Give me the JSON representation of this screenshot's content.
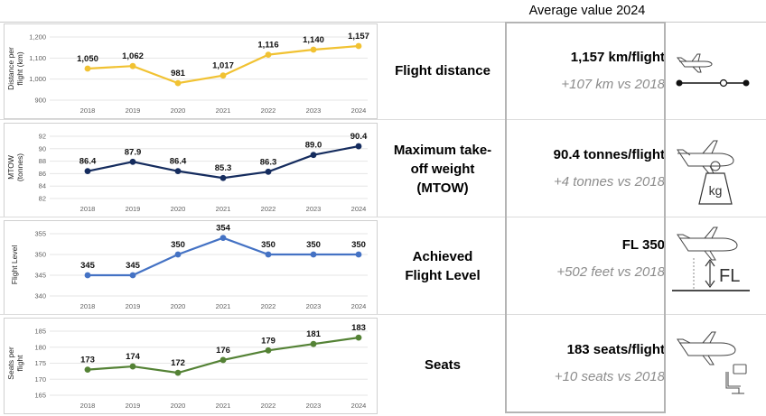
{
  "header": {
    "title": "Average value 2024"
  },
  "rows": [
    {
      "label": "Flight distance",
      "value": "1,157 km/flight",
      "delta": "+107 km vs 2018",
      "icon": "plane-distance-icon",
      "color": "#f1c232",
      "chart_data": {
        "type": "line",
        "ylabel": "Distance per flight (km)",
        "x": [
          "2018",
          "2019",
          "2020",
          "2021",
          "2022",
          "2023",
          "2024"
        ],
        "values": [
          1050,
          1062,
          981,
          1017,
          1116,
          1140,
          1157
        ],
        "labels": [
          "1,050",
          "1,062",
          "981",
          "1,017",
          "1,116",
          "1,140",
          "1,157"
        ],
        "yticks": [
          "900",
          "1,000",
          "1,100",
          "1,200"
        ],
        "ytick_values": [
          900,
          1000,
          1100,
          1200
        ],
        "ylim": [
          900,
          1200
        ],
        "grid": true
      }
    },
    {
      "label": "Maximum take-off weight (MTOW)",
      "value": "90.4 tonnes/flight",
      "delta": "+4 tonnes vs 2018",
      "icon": "plane-weight-kg-icon",
      "color": "#152c5e",
      "chart_data": {
        "type": "line",
        "ylabel": "MTOW (tonnes)",
        "x": [
          "2018",
          "2019",
          "2020",
          "2021",
          "2022",
          "2023",
          "2024"
        ],
        "values": [
          86.4,
          87.9,
          86.4,
          85.3,
          86.3,
          89.0,
          90.4
        ],
        "labels": [
          "86.4",
          "87.9",
          "86.4",
          "85.3",
          "86.3",
          "89.0",
          "90.4"
        ],
        "yticks": [
          "82",
          "84",
          "86",
          "88",
          "90",
          "92"
        ],
        "ytick_values": [
          82,
          84,
          86,
          88,
          90,
          92
        ],
        "ylim": [
          82,
          92
        ],
        "grid": true
      }
    },
    {
      "label": "Achieved Flight Level",
      "value": "FL 350",
      "delta": "+502 feet vs 2018",
      "icon": "plane-flight-level-icon",
      "icon_text": "FL",
      "color": "#4472c4",
      "chart_data": {
        "type": "line",
        "ylabel": "Flight Level",
        "x": [
          "2018",
          "2019",
          "2020",
          "2021",
          "2022",
          "2023",
          "2024"
        ],
        "values": [
          345,
          345,
          350,
          354,
          350,
          350,
          350
        ],
        "labels": [
          "345",
          "345",
          "350",
          "354",
          "350",
          "350",
          "350"
        ],
        "yticks": [
          "340",
          "345",
          "350",
          "355"
        ],
        "ytick_values": [
          340,
          345,
          350,
          355
        ],
        "ylim": [
          340,
          355
        ],
        "grid": true
      }
    },
    {
      "label": "Seats",
      "value": "183 seats/flight",
      "delta": "+10 seats vs 2018",
      "icon": "plane-seat-icon",
      "color": "#548235",
      "chart_data": {
        "type": "line",
        "ylabel": "Seats per flight",
        "x": [
          "2018",
          "2019",
          "2020",
          "2021",
          "2022",
          "2023",
          "2024"
        ],
        "values": [
          173,
          174,
          172,
          176,
          179,
          181,
          183
        ],
        "labels": [
          "173",
          "174",
          "172",
          "176",
          "179",
          "181",
          "183"
        ],
        "yticks": [
          "165",
          "170",
          "175",
          "180",
          "185"
        ],
        "ytick_values": [
          165,
          170,
          175,
          180,
          185
        ],
        "ylim": [
          165,
          185
        ],
        "grid": true
      }
    }
  ]
}
